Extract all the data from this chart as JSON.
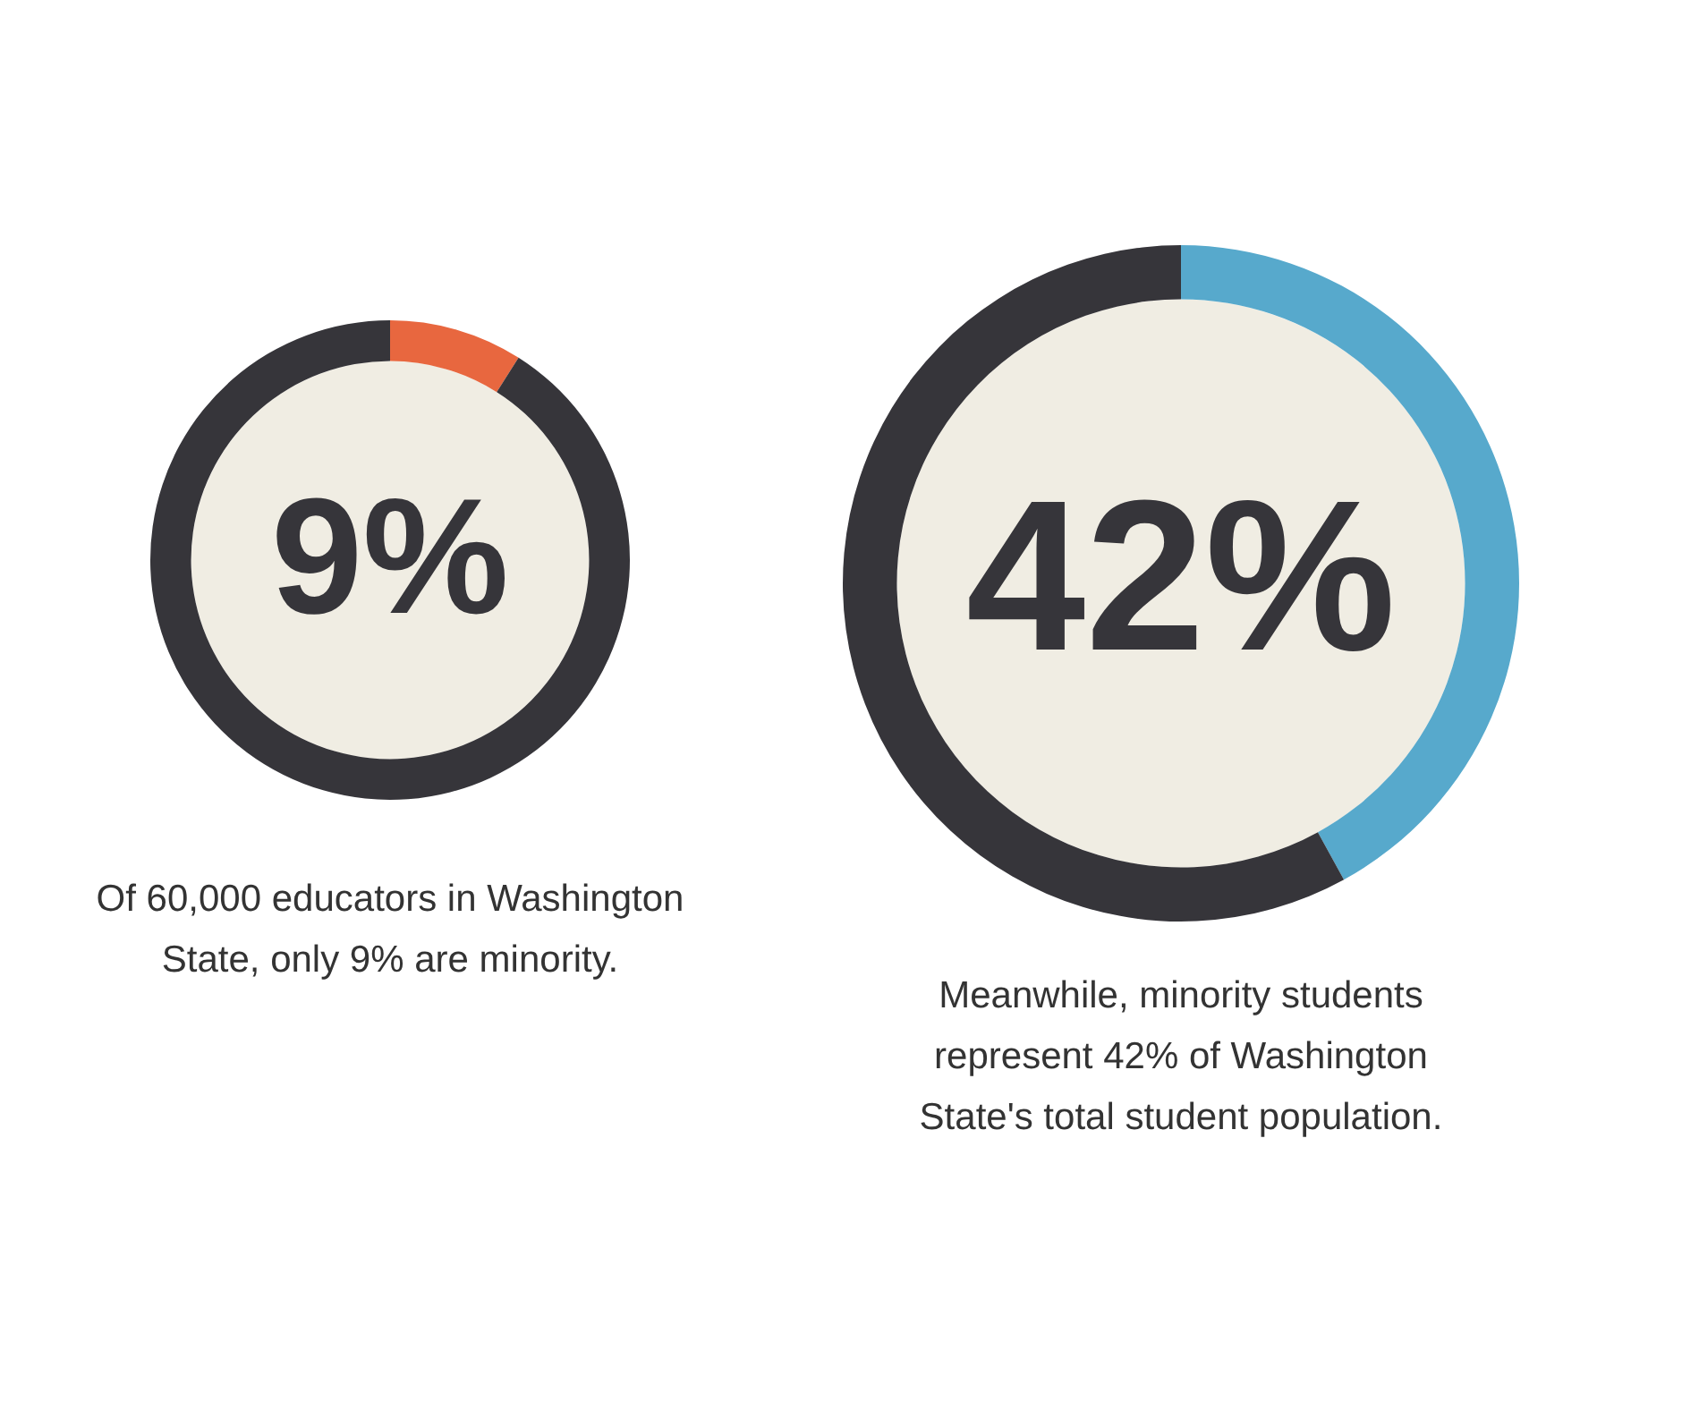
{
  "chart_data": [
    {
      "type": "donut",
      "categories": [
        null,
        null
      ],
      "values": [
        9,
        91
      ],
      "colors": [
        "#e8673f",
        "#36353a"
      ],
      "value_labels": [
        "9%",
        null
      ],
      "legend": false,
      "annotations": [
        "Of 60,000 educators in Washington State, only 9% are minority."
      ]
    },
    {
      "type": "donut",
      "categories": [
        null,
        null
      ],
      "values": [
        42,
        58
      ],
      "colors": [
        "#57a9cc",
        "#36353a"
      ],
      "value_labels": [
        "42%",
        null
      ],
      "legend": false,
      "annotations": [
        "Meanwhile, minority students represent 42% of Washington State's total student population."
      ]
    }
  ]
}
